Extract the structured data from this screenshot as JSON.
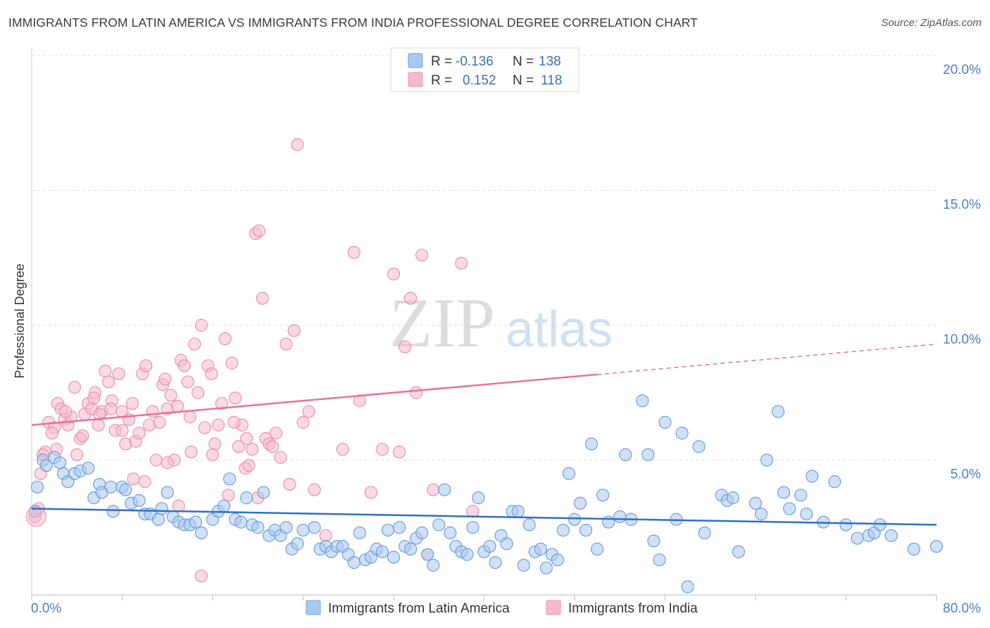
{
  "header": {
    "title": "IMMIGRANTS FROM LATIN AMERICA VS IMMIGRANTS FROM INDIA PROFESSIONAL DEGREE CORRELATION CHART",
    "source": "Source: ZipAtlas.com"
  },
  "watermark": {
    "zip": "ZIP",
    "atlas": "atlas"
  },
  "legend": {
    "series1": {
      "r_label": "R =",
      "r_value": "-0.136",
      "n_label": "N =",
      "n_value": "138"
    },
    "series2": {
      "r_label": "R =",
      "r_value": "0.152",
      "n_label": "N =",
      "n_value": "118"
    }
  },
  "colors": {
    "blue_fill": "#a9c8f0",
    "blue_stroke": "#6f9fd8",
    "blue_line": "#2d6fcc",
    "pink_fill": "#f6b9cc",
    "pink_stroke": "#e892ae",
    "pink_line": "#e8719a"
  },
  "chart_data": {
    "type": "scatter",
    "title": "IMMIGRANTS FROM LATIN AMERICA VS IMMIGRANTS FROM INDIA PROFESSIONAL DEGREE CORRELATION CHART",
    "xlabel": "",
    "ylabel": "Professional Degree",
    "xlim": [
      0,
      80
    ],
    "ylim": [
      0,
      20
    ],
    "x_tick_labels": [
      "0.0%",
      "80.0%"
    ],
    "y_ticks": [
      5,
      10,
      15,
      20
    ],
    "y_tick_labels": [
      "5.0%",
      "10.0%",
      "15.0%",
      "20.0%"
    ],
    "grid": true,
    "legend_position": "top-center",
    "series": [
      {
        "name": "Immigrants from Latin America",
        "color": "#a9c8f0",
        "trend": {
          "x": [
            0,
            80
          ],
          "y": [
            3.2,
            2.6
          ],
          "dashed_from": null
        },
        "points": [
          [
            0.3,
            3.1
          ],
          [
            0.5,
            4.0
          ],
          [
            1.0,
            5.0
          ],
          [
            1.3,
            4.8
          ],
          [
            2.0,
            5.1
          ],
          [
            2.5,
            4.9
          ],
          [
            2.8,
            4.5
          ],
          [
            3.2,
            4.2
          ],
          [
            3.8,
            4.5
          ],
          [
            4.3,
            4.6
          ],
          [
            5.0,
            4.7
          ],
          [
            5.5,
            3.6
          ],
          [
            6.0,
            4.1
          ],
          [
            6.2,
            3.8
          ],
          [
            7.0,
            4.0
          ],
          [
            7.2,
            3.1
          ],
          [
            8.0,
            4.0
          ],
          [
            8.3,
            3.9
          ],
          [
            8.8,
            3.4
          ],
          [
            9.5,
            3.5
          ],
          [
            10.0,
            3.0
          ],
          [
            10.5,
            3.0
          ],
          [
            11.2,
            2.8
          ],
          [
            11.5,
            3.2
          ],
          [
            12.0,
            3.8
          ],
          [
            12.5,
            2.9
          ],
          [
            13.0,
            2.7
          ],
          [
            13.5,
            2.6
          ],
          [
            14.0,
            2.6
          ],
          [
            14.5,
            2.7
          ],
          [
            15.0,
            2.3
          ],
          [
            16.0,
            2.8
          ],
          [
            16.5,
            3.1
          ],
          [
            17.0,
            3.3
          ],
          [
            17.5,
            4.3
          ],
          [
            18.0,
            2.8
          ],
          [
            18.5,
            2.7
          ],
          [
            19.0,
            3.6
          ],
          [
            19.5,
            2.6
          ],
          [
            20.0,
            2.5
          ],
          [
            20.5,
            3.8
          ],
          [
            21.0,
            2.2
          ],
          [
            21.5,
            2.4
          ],
          [
            22.0,
            2.2
          ],
          [
            22.5,
            2.5
          ],
          [
            23.0,
            1.7
          ],
          [
            23.5,
            1.9
          ],
          [
            24.0,
            2.4
          ],
          [
            25.0,
            2.5
          ],
          [
            25.5,
            1.7
          ],
          [
            26.0,
            1.8
          ],
          [
            26.5,
            1.6
          ],
          [
            27.0,
            1.8
          ],
          [
            27.5,
            1.8
          ],
          [
            28.0,
            1.5
          ],
          [
            28.5,
            1.2
          ],
          [
            29.0,
            2.3
          ],
          [
            29.5,
            1.3
          ],
          [
            30.0,
            1.4
          ],
          [
            30.5,
            1.7
          ],
          [
            31.0,
            1.6
          ],
          [
            31.5,
            2.4
          ],
          [
            32.0,
            1.4
          ],
          [
            32.5,
            2.5
          ],
          [
            33.0,
            1.8
          ],
          [
            33.5,
            1.7
          ],
          [
            34.0,
            2.1
          ],
          [
            34.5,
            2.3
          ],
          [
            35.0,
            1.5
          ],
          [
            35.5,
            1.1
          ],
          [
            36.0,
            2.6
          ],
          [
            36.5,
            3.9
          ],
          [
            37.0,
            2.3
          ],
          [
            37.5,
            1.8
          ],
          [
            38.0,
            1.6
          ],
          [
            38.5,
            1.5
          ],
          [
            39.0,
            2.5
          ],
          [
            39.5,
            3.6
          ],
          [
            40.0,
            1.6
          ],
          [
            40.5,
            1.8
          ],
          [
            41.0,
            1.2
          ],
          [
            41.5,
            2.2
          ],
          [
            42.0,
            1.9
          ],
          [
            42.5,
            3.1
          ],
          [
            43.0,
            3.1
          ],
          [
            43.5,
            1.1
          ],
          [
            44.0,
            2.6
          ],
          [
            44.5,
            1.6
          ],
          [
            45.0,
            1.7
          ],
          [
            45.5,
            1.0
          ],
          [
            46.0,
            1.5
          ],
          [
            46.5,
            1.3
          ],
          [
            47.0,
            2.4
          ],
          [
            47.5,
            4.5
          ],
          [
            48.0,
            2.8
          ],
          [
            48.5,
            3.4
          ],
          [
            49.0,
            2.4
          ],
          [
            49.5,
            5.6
          ],
          [
            50.0,
            1.7
          ],
          [
            50.5,
            3.7
          ],
          [
            51.0,
            2.7
          ],
          [
            52.0,
            2.9
          ],
          [
            52.5,
            5.2
          ],
          [
            53.0,
            2.8
          ],
          [
            54.0,
            7.2
          ],
          [
            54.5,
            5.2
          ],
          [
            55.0,
            2.0
          ],
          [
            55.5,
            1.3
          ],
          [
            56.0,
            6.4
          ],
          [
            57.0,
            2.8
          ],
          [
            57.5,
            6.0
          ],
          [
            59.0,
            5.5
          ],
          [
            59.5,
            2.3
          ],
          [
            61.0,
            3.7
          ],
          [
            61.5,
            3.5
          ],
          [
            62.0,
            3.6
          ],
          [
            62.5,
            1.6
          ],
          [
            64.0,
            3.4
          ],
          [
            64.5,
            3.0
          ],
          [
            65.0,
            5.0
          ],
          [
            66.0,
            6.8
          ],
          [
            66.5,
            3.8
          ],
          [
            67.0,
            3.2
          ],
          [
            68.0,
            3.7
          ],
          [
            68.5,
            3.0
          ],
          [
            69.0,
            4.4
          ],
          [
            70.0,
            2.7
          ],
          [
            71.0,
            4.2
          ],
          [
            72.0,
            2.6
          ],
          [
            73.0,
            2.1
          ],
          [
            74.0,
            2.2
          ],
          [
            74.5,
            2.3
          ],
          [
            75.0,
            2.6
          ],
          [
            76.0,
            2.2
          ],
          [
            78.0,
            1.7
          ],
          [
            80.0,
            1.8
          ],
          [
            58.0,
            0.3
          ]
        ]
      },
      {
        "name": "Immigrants from India",
        "color": "#f6b9cc",
        "trend": {
          "x": [
            0,
            80
          ],
          "y": [
            6.3,
            9.3
          ],
          "dashed_from": 50
        },
        "points": [
          [
            0.3,
            2.9
          ],
          [
            0.8,
            4.5
          ],
          [
            1.2,
            5.3
          ],
          [
            1.5,
            6.4
          ],
          [
            2.0,
            6.2
          ],
          [
            2.3,
            7.1
          ],
          [
            2.6,
            6.9
          ],
          [
            2.9,
            6.5
          ],
          [
            3.2,
            6.3
          ],
          [
            3.5,
            6.6
          ],
          [
            3.8,
            7.7
          ],
          [
            4.0,
            5.2
          ],
          [
            4.3,
            5.8
          ],
          [
            4.7,
            6.7
          ],
          [
            5.0,
            7.1
          ],
          [
            5.3,
            6.9
          ],
          [
            5.6,
            7.5
          ],
          [
            5.9,
            6.3
          ],
          [
            6.2,
            6.8
          ],
          [
            6.5,
            8.3
          ],
          [
            6.8,
            7.9
          ],
          [
            7.1,
            7.2
          ],
          [
            7.4,
            6.1
          ],
          [
            7.7,
            8.2
          ],
          [
            8.0,
            6.8
          ],
          [
            8.3,
            5.6
          ],
          [
            8.6,
            6.5
          ],
          [
            8.9,
            7.1
          ],
          [
            9.2,
            5.7
          ],
          [
            9.5,
            6.0
          ],
          [
            9.8,
            8.2
          ],
          [
            10.1,
            8.5
          ],
          [
            10.4,
            6.3
          ],
          [
            10.7,
            6.8
          ],
          [
            11.0,
            5.0
          ],
          [
            11.3,
            6.4
          ],
          [
            11.6,
            7.8
          ],
          [
            12.0,
            6.9
          ],
          [
            12.3,
            7.4
          ],
          [
            12.6,
            5.0
          ],
          [
            12.9,
            7.0
          ],
          [
            13.2,
            8.7
          ],
          [
            13.5,
            8.5
          ],
          [
            13.8,
            7.9
          ],
          [
            14.1,
            5.3
          ],
          [
            14.4,
            9.3
          ],
          [
            14.7,
            7.5
          ],
          [
            15.0,
            10.0
          ],
          [
            15.3,
            6.2
          ],
          [
            15.6,
            8.5
          ],
          [
            15.9,
            8.2
          ],
          [
            16.2,
            5.6
          ],
          [
            16.5,
            6.3
          ],
          [
            16.8,
            7.1
          ],
          [
            17.1,
            9.5
          ],
          [
            17.4,
            3.7
          ],
          [
            17.7,
            8.6
          ],
          [
            18.0,
            7.3
          ],
          [
            18.3,
            5.5
          ],
          [
            18.6,
            6.3
          ],
          [
            18.9,
            4.7
          ],
          [
            19.2,
            4.8
          ],
          [
            19.5,
            5.4
          ],
          [
            19.8,
            13.4
          ],
          [
            20.1,
            13.5
          ],
          [
            20.4,
            11.0
          ],
          [
            20.7,
            5.8
          ],
          [
            21.0,
            5.6
          ],
          [
            21.3,
            5.5
          ],
          [
            21.6,
            6.0
          ],
          [
            22.0,
            5.1
          ],
          [
            22.5,
            9.3
          ],
          [
            22.8,
            4.1
          ],
          [
            23.2,
            9.8
          ],
          [
            23.5,
            16.7
          ],
          [
            24.0,
            6.4
          ],
          [
            24.5,
            6.8
          ],
          [
            25.0,
            3.9
          ],
          [
            26.0,
            2.2
          ],
          [
            27.5,
            5.4
          ],
          [
            28.5,
            12.7
          ],
          [
            29.0,
            7.2
          ],
          [
            30.0,
            3.8
          ],
          [
            31.0,
            5.4
          ],
          [
            32.0,
            11.9
          ],
          [
            32.5,
            5.3
          ],
          [
            33.0,
            9.2
          ],
          [
            33.5,
            11.0
          ],
          [
            34.0,
            7.5
          ],
          [
            34.5,
            12.6
          ],
          [
            35.0,
            1.5
          ],
          [
            35.5,
            3.9
          ],
          [
            38.0,
            12.3
          ],
          [
            39.0,
            3.1
          ],
          [
            15.0,
            0.7
          ],
          [
            13.0,
            3.3
          ],
          [
            9.0,
            4.3
          ],
          [
            10.0,
            4.2
          ],
          [
            7.0,
            6.9
          ],
          [
            6.0,
            6.7
          ],
          [
            5.5,
            7.3
          ],
          [
            4.5,
            5.9
          ],
          [
            3.0,
            6.8
          ],
          [
            1.8,
            6.0
          ],
          [
            1.0,
            5.2
          ],
          [
            0.6,
            3.2
          ],
          [
            2.2,
            5.4
          ],
          [
            8.0,
            6.1
          ],
          [
            11.8,
            8.0
          ],
          [
            16.0,
            5.2
          ],
          [
            17.9,
            6.4
          ],
          [
            19.0,
            5.8
          ],
          [
            20.0,
            3.6
          ],
          [
            14.0,
            6.6
          ],
          [
            12.0,
            4.9
          ]
        ]
      }
    ]
  },
  "bottom_legend": {
    "series1_label": "Immigrants from Latin America",
    "series2_label": "Immigrants from India"
  }
}
